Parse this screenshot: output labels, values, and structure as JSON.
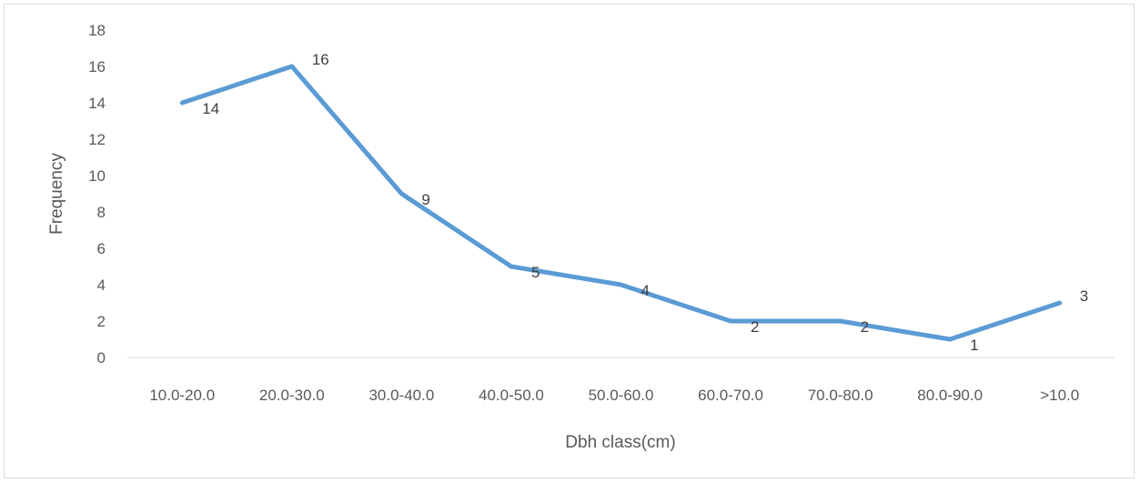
{
  "chart_data": {
    "type": "line",
    "categories": [
      "10.0-20.0",
      "20.0-30.0",
      "30.0-40.0",
      "40.0-50.0",
      "50.0-60.0",
      "60.0-70.0",
      "70.0-80.0",
      "80.0-90.0",
      ">10.0"
    ],
    "series": [
      {
        "values": [
          14,
          16,
          9,
          5,
          4,
          2,
          2,
          1,
          3
        ],
        "color": "#5b9bd5"
      }
    ],
    "data_labels": [
      "14",
      "16",
      "9",
      "5",
      "4",
      "2",
      "2",
      "1",
      "3"
    ],
    "xlabel": "Dbh class(cm)",
    "ylabel": "Frequency",
    "ylim": [
      0,
      18
    ],
    "y_ticks": [
      "0",
      "2",
      "4",
      "6",
      "8",
      "10",
      "12",
      "14",
      "16",
      "18"
    ],
    "grid": false,
    "legend": "none"
  }
}
